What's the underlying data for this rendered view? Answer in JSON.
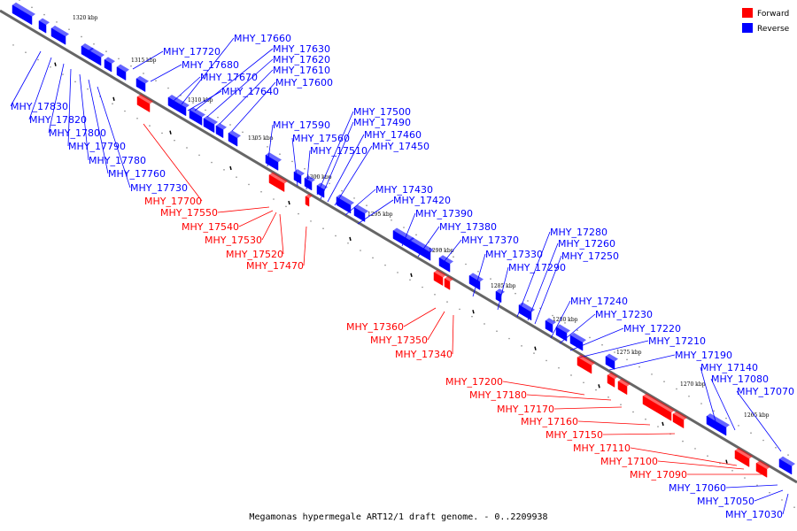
{
  "diagram": {
    "caption": "Megamonas hypermegale ART12/1 draft genome. - 0..2209938",
    "legend": [
      {
        "label": "Forward",
        "color": "#ff0000"
      },
      {
        "label": "Reverse",
        "color": "#0000ff"
      }
    ],
    "colors": {
      "forward": "#ff0000",
      "reverse": "#0000ff",
      "axis": "#666666"
    },
    "kbp_ticks": [
      "1320 kbp",
      "1315 kbp",
      "1310 kbp",
      "1305 kbp",
      "1300 kbp",
      "1295 kbp",
      "1290 kbp",
      "1285 kbp",
      "1280 kbp",
      "1275 kbp",
      "1270 kbp",
      "1265 kbp"
    ],
    "reverse_genes": [
      "MHY_17830",
      "MHY_17820",
      "MHY_17800",
      "MHY_17790",
      "MHY_17780",
      "MHY_17760",
      "MHY_17730",
      "MHY_17720",
      "MHY_17680",
      "MHY_17670",
      "MHY_17660",
      "MHY_17630",
      "MHY_17620",
      "MHY_17610",
      "MHY_17600",
      "MHY_17640",
      "MHY_17590",
      "MHY_17560",
      "MHY_17510",
      "MHY_17500",
      "MHY_17490",
      "MHY_17460",
      "MHY_17450",
      "MHY_17430",
      "MHY_17420",
      "MHY_17390",
      "MHY_17380",
      "MHY_17370",
      "MHY_17330",
      "MHY_17290",
      "MHY_17280",
      "MHY_17260",
      "MHY_17250",
      "MHY_17240",
      "MHY_17230",
      "MHY_17220",
      "MHY_17210",
      "MHY_17190",
      "MHY_17140",
      "MHY_17080",
      "MHY_17070",
      "MHY_17060",
      "MHY_17050",
      "MHY_17030"
    ],
    "forward_genes": [
      "MHY_17700",
      "MHY_17550",
      "MHY_17540",
      "MHY_17530",
      "MHY_17520",
      "MHY_17470",
      "MHY_17360",
      "MHY_17350",
      "MHY_17340",
      "MHY_17200",
      "MHY_17180",
      "MHY_17170",
      "MHY_17160",
      "MHY_17150",
      "MHY_17110",
      "MHY_17100",
      "MHY_17090"
    ]
  }
}
